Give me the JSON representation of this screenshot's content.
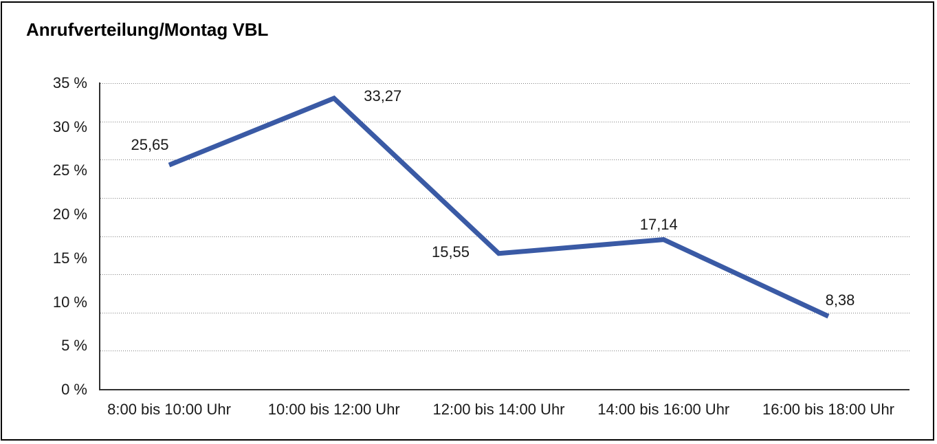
{
  "window": {
    "background_color": "#ffffff",
    "frame_border_color": "#000000"
  },
  "chart_data": {
    "type": "line",
    "title": "Anrufverteilung/Montag VBL",
    "categories": [
      "8:00 bis 10:00 Uhr",
      "10:00 bis 12:00 Uhr",
      "12:00 bis 14:00 Uhr",
      "14:00 bis 16:00 Uhr",
      "16:00 bis 18:00 Uhr"
    ],
    "series": [
      {
        "values": [
          25.65,
          33.27,
          15.55,
          17.14,
          8.38
        ],
        "labels": [
          "25,65",
          "33,27",
          "15,55",
          "17,14",
          "8,38"
        ],
        "color": "#3A5AA5"
      }
    ],
    "y_ticks": [
      {
        "value": 35,
        "label": "35 %"
      },
      {
        "value": 30,
        "label": "30 %"
      },
      {
        "value": 25,
        "label": "25 %"
      },
      {
        "value": 20,
        "label": "20 %"
      },
      {
        "value": 15,
        "label": "15 %"
      },
      {
        "value": 10,
        "label": "10 %"
      },
      {
        "value": 5,
        "label": "5 %"
      },
      {
        "value": 0,
        "label": "0 %"
      }
    ],
    "ylim": [
      0,
      35
    ],
    "xlabel": "",
    "ylabel": "",
    "grid": "horizontal-dotted",
    "legend": "none",
    "gridline_color": "#7d7d7d",
    "axis_color": "#2f2f2f",
    "text_color": "#1a1a1a"
  }
}
